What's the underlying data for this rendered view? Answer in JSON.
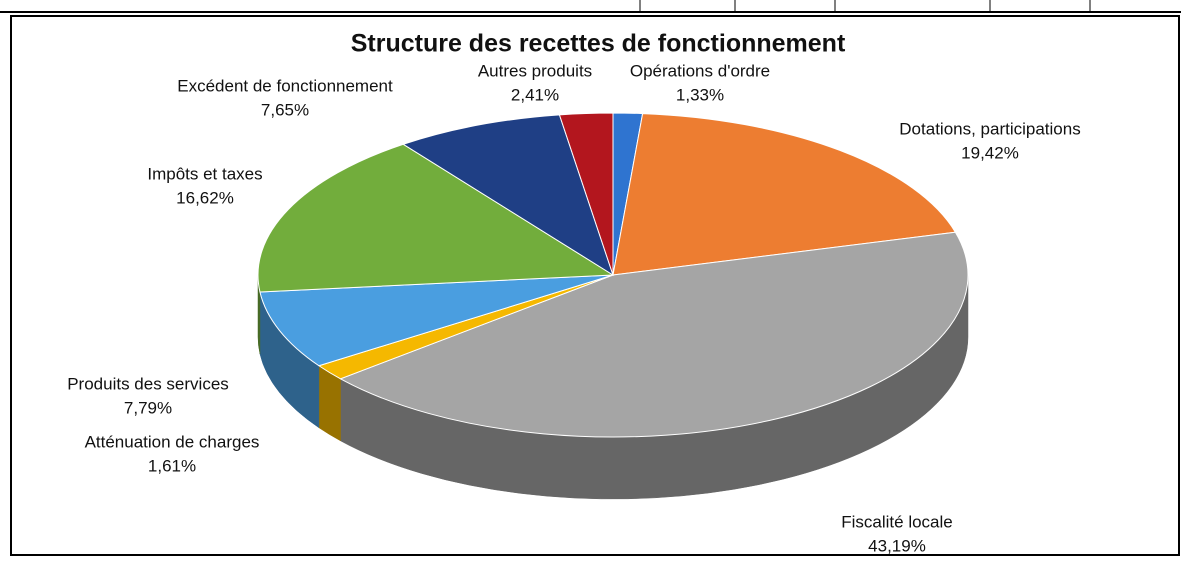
{
  "chart_data": {
    "type": "pie3d",
    "title": "Structure des recettes de fonctionnement",
    "categories": [
      "Opérations d'ordre",
      "Dotations, participations",
      "Fiscalité locale",
      "Atténuation de charges",
      "Produits des services",
      "Impôts et taxes",
      "Excédent de fonctionnement",
      "Autres produits"
    ],
    "values": [
      1.33,
      19.42,
      43.19,
      1.61,
      7.79,
      16.62,
      7.65,
      2.41
    ],
    "value_labels": [
      "1,33%",
      "19,42%",
      "43,19%",
      "1,61%",
      "7,79%",
      "16,62%",
      "7,65%",
      "2,41%"
    ],
    "colors": [
      "#2f74d0",
      "#ed7d31",
      "#a5a5a5",
      "#f5b800",
      "#4a9ee0",
      "#72ad3c",
      "#1f3f85",
      "#b3161e"
    ]
  }
}
